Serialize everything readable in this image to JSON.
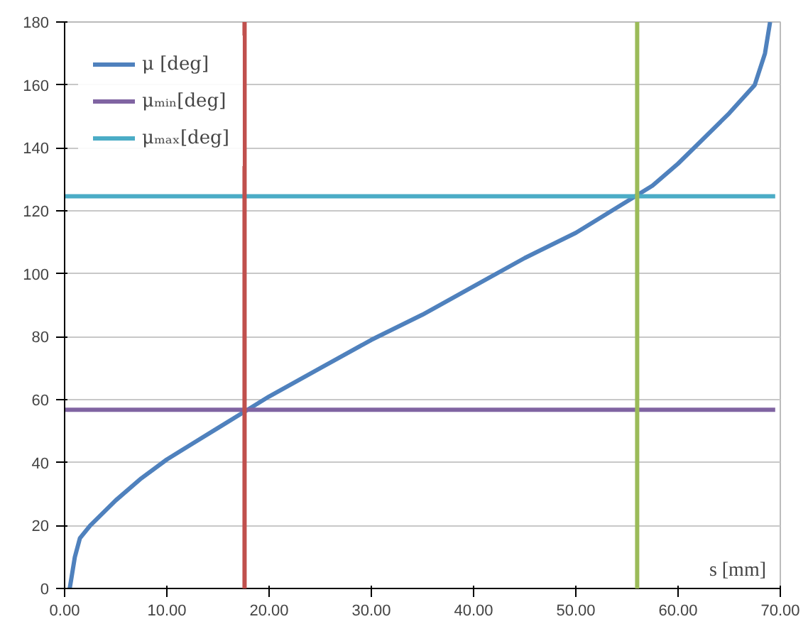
{
  "chart_data": {
    "type": "line",
    "xlabel": "s [mm]",
    "series": [
      {
        "name": "μ [deg]",
        "color": "#4f81bd",
        "x": [
          0.5,
          1,
          1.5,
          2.5,
          5,
          7.5,
          10,
          12.5,
          15,
          17.5,
          20,
          25,
          30,
          35,
          40,
          45,
          50,
          55,
          57.5,
          60,
          62.5,
          65,
          67.5,
          68.5,
          69
        ],
        "values": [
          0,
          10,
          16,
          20,
          28,
          35,
          41,
          46,
          51,
          56,
          61,
          70,
          79,
          87,
          96,
          105,
          113,
          123,
          128,
          135,
          143,
          151,
          160,
          170,
          180
        ]
      },
      {
        "name": "μₘᵢₙ[deg]",
        "color": "#8064a2",
        "x": [
          0,
          69.5
        ],
        "values": [
          56.8,
          56.8
        ]
      },
      {
        "name": "μₘₐₓ[deg]",
        "color": "#4bacc6",
        "x": [
          0,
          69.5
        ],
        "values": [
          124.6,
          124.6
        ]
      }
    ],
    "ref_lines": [
      {
        "axis": "x",
        "value": 17.6,
        "color": "#c0504d"
      },
      {
        "axis": "x",
        "value": 56.0,
        "color": "#9bbb59"
      }
    ],
    "xlim": [
      0,
      70
    ],
    "ylim": [
      0,
      180
    ],
    "xticks": [
      {
        "value": 0,
        "label": "0.00"
      },
      {
        "value": 10,
        "label": "10.00"
      },
      {
        "value": 20,
        "label": "20.00"
      },
      {
        "value": 30,
        "label": "30.00"
      },
      {
        "value": 40,
        "label": "40.00"
      },
      {
        "value": 50,
        "label": "50.00"
      },
      {
        "value": 60,
        "label": "60.00"
      },
      {
        "value": 70,
        "label": "70.00"
      }
    ],
    "yticks": [
      0,
      20,
      40,
      60,
      80,
      100,
      120,
      140,
      160,
      180
    ],
    "grid": "y",
    "legend": "top left",
    "line_style": "solid",
    "marker": "none"
  }
}
